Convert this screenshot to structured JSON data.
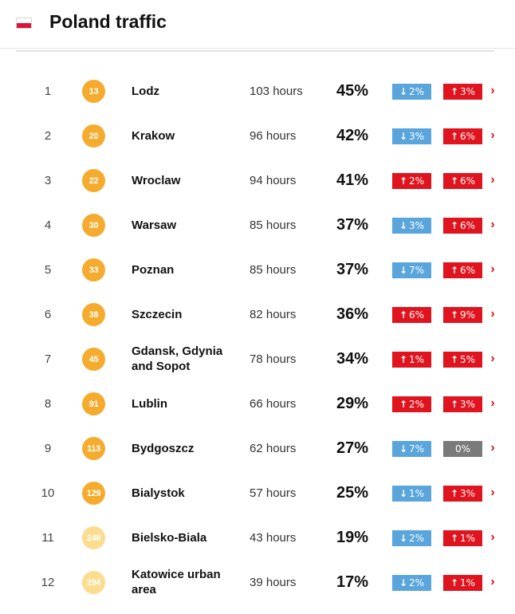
{
  "header": {
    "title": "Poland traffic",
    "flag_icon": "poland-flag-icon"
  },
  "colors": {
    "down": "#5aa6dc",
    "up": "#e0141e",
    "zero": "#7a7a7a",
    "badge_dark": "#f5ab2e",
    "badge_light": "#fcdc8e"
  },
  "rows": [
    {
      "rank": "1",
      "world_rank": "13",
      "badge_tone": "dark",
      "city": "Lodz",
      "hours": "103 hours",
      "congestion": "45%",
      "change1": {
        "dir": "down",
        "text": "2%"
      },
      "change2": {
        "dir": "up",
        "text": "3%"
      }
    },
    {
      "rank": "2",
      "world_rank": "20",
      "badge_tone": "dark",
      "city": "Krakow",
      "hours": "96 hours",
      "congestion": "42%",
      "change1": {
        "dir": "down",
        "text": "3%"
      },
      "change2": {
        "dir": "up",
        "text": "6%"
      }
    },
    {
      "rank": "3",
      "world_rank": "22",
      "badge_tone": "dark",
      "city": "Wroclaw",
      "hours": "94 hours",
      "congestion": "41%",
      "change1": {
        "dir": "up",
        "text": "2%"
      },
      "change2": {
        "dir": "up",
        "text": "6%"
      }
    },
    {
      "rank": "4",
      "world_rank": "30",
      "badge_tone": "dark",
      "city": "Warsaw",
      "hours": "85 hours",
      "congestion": "37%",
      "change1": {
        "dir": "down",
        "text": "3%"
      },
      "change2": {
        "dir": "up",
        "text": "6%"
      }
    },
    {
      "rank": "5",
      "world_rank": "33",
      "badge_tone": "dark",
      "city": "Poznan",
      "hours": "85 hours",
      "congestion": "37%",
      "change1": {
        "dir": "down",
        "text": "7%"
      },
      "change2": {
        "dir": "up",
        "text": "6%"
      }
    },
    {
      "rank": "6",
      "world_rank": "38",
      "badge_tone": "dark",
      "city": "Szczecin",
      "hours": "82 hours",
      "congestion": "36%",
      "change1": {
        "dir": "up",
        "text": "6%"
      },
      "change2": {
        "dir": "up",
        "text": "9%"
      }
    },
    {
      "rank": "7",
      "world_rank": "45",
      "badge_tone": "dark",
      "city": "Gdansk, Gdynia and Sopot",
      "hours": "78 hours",
      "congestion": "34%",
      "change1": {
        "dir": "up",
        "text": "1%"
      },
      "change2": {
        "dir": "up",
        "text": "5%"
      }
    },
    {
      "rank": "8",
      "world_rank": "91",
      "badge_tone": "dark",
      "city": "Lublin",
      "hours": "66 hours",
      "congestion": "29%",
      "change1": {
        "dir": "up",
        "text": "2%"
      },
      "change2": {
        "dir": "up",
        "text": "3%"
      }
    },
    {
      "rank": "9",
      "world_rank": "113",
      "badge_tone": "dark",
      "city": "Bydgoszcz",
      "hours": "62 hours",
      "congestion": "27%",
      "change1": {
        "dir": "down",
        "text": "7%"
      },
      "change2": {
        "dir": "zero",
        "text": "0%"
      }
    },
    {
      "rank": "10",
      "world_rank": "129",
      "badge_tone": "dark",
      "city": "Bialystok",
      "hours": "57 hours",
      "congestion": "25%",
      "change1": {
        "dir": "down",
        "text": "1%"
      },
      "change2": {
        "dir": "up",
        "text": "3%"
      }
    },
    {
      "rank": "11",
      "world_rank": "248",
      "badge_tone": "light",
      "city": "Bielsko-Biala",
      "hours": "43 hours",
      "congestion": "19%",
      "change1": {
        "dir": "down",
        "text": "2%"
      },
      "change2": {
        "dir": "up",
        "text": "1%"
      }
    },
    {
      "rank": "12",
      "world_rank": "294",
      "badge_tone": "light",
      "city": "Katowice urban area",
      "hours": "39 hours",
      "congestion": "17%",
      "change1": {
        "dir": "down",
        "text": "2%"
      },
      "change2": {
        "dir": "up",
        "text": "1%"
      }
    }
  ]
}
